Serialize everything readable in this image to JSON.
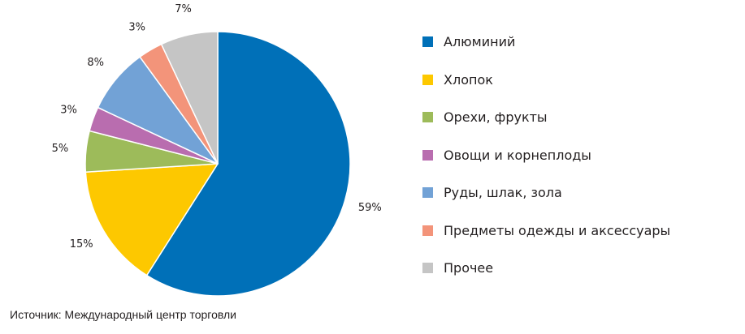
{
  "chart_data": {
    "type": "pie",
    "title": "",
    "categories": [
      "Алюминий",
      "Хлопок",
      "Орехи, фрукты",
      "Овощи и корнеплоды",
      "Руды, шлак, зола",
      "Предметы одежды и аксессуары",
      "Прочее"
    ],
    "values": [
      59,
      15,
      5,
      3,
      8,
      3,
      7
    ],
    "value_labels": [
      "59%",
      "15%",
      "5%",
      "3%",
      "8%",
      "3%",
      "7%"
    ],
    "colors": [
      "#0070b8",
      "#fdc800",
      "#9dbb5a",
      "#b96daf",
      "#72a2d6",
      "#f3947a",
      "#c5c5c5"
    ],
    "legend_position": "right",
    "start": "top, clockwise"
  },
  "source_text": "Источник: Международный центр торговли"
}
